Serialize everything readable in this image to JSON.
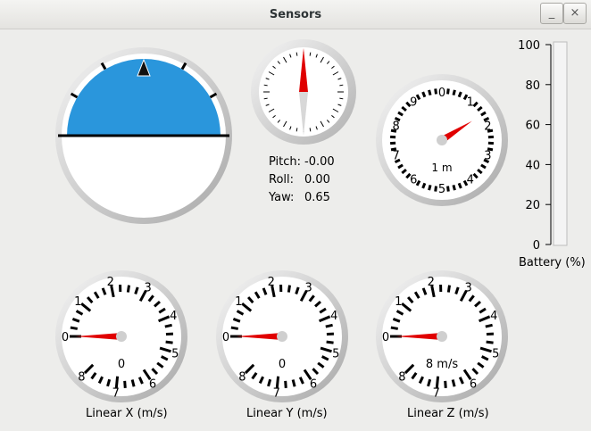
{
  "window": {
    "title": "Sensors",
    "minimize_label": "_",
    "close_label": "×"
  },
  "horizon": {
    "name": "artificial-horizon",
    "sky_color": "#2a96dc"
  },
  "compass": {
    "name": "compass"
  },
  "orientation": {
    "pitch_label": "Pitch:",
    "pitch_value": "-0.00",
    "roll_label": "Roll:",
    "roll_value": "0.00",
    "yaw_label": "Yaw:",
    "yaw_value": "0.65"
  },
  "altitude": {
    "labels": [
      "0",
      "1",
      "2",
      "3",
      "4",
      "5",
      "6",
      "7",
      "8",
      "9"
    ],
    "unit": "1 m",
    "needle_value": 1.6
  },
  "battery": {
    "ticks": [
      "100",
      "80",
      "60",
      "40",
      "20",
      "0"
    ],
    "label": "Battery (%)",
    "level_percent": 0
  },
  "linear": [
    {
      "label": "Linear X (m/s)",
      "center_text": "0",
      "value": 0,
      "scale": [
        "0",
        "1",
        "2",
        "3",
        "4",
        "5",
        "6",
        "7",
        "8"
      ]
    },
    {
      "label": "Linear Y (m/s)",
      "center_text": "0",
      "value": 0,
      "scale": [
        "0",
        "1",
        "2",
        "3",
        "4",
        "5",
        "6",
        "7",
        "8"
      ]
    },
    {
      "label": "Linear Z (m/s)",
      "center_text": "8 m/s",
      "value": 0,
      "scale": [
        "0",
        "1",
        "2",
        "3",
        "4",
        "5",
        "6",
        "7",
        "8"
      ]
    }
  ],
  "colors": {
    "needle": "#e00000",
    "bezel": "#b8b8b8",
    "accent": "#2a96dc"
  }
}
